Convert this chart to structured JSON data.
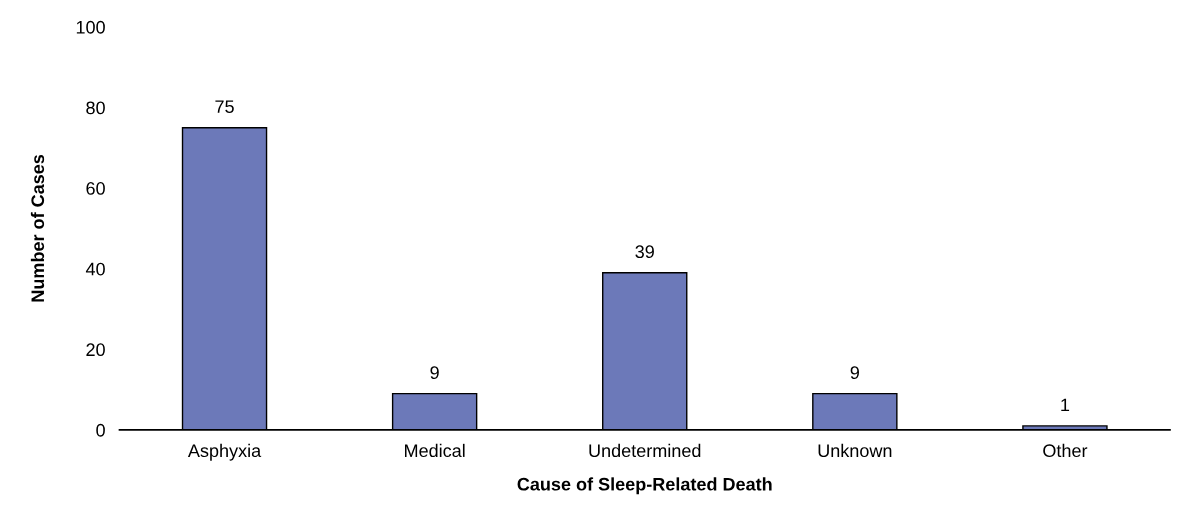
{
  "chart_data": {
    "type": "bar",
    "xlabel": "Cause of Sleep-Related Death",
    "ylabel": "Number of Cases",
    "categories": [
      "Asphyxia",
      "Medical",
      "Undetermined",
      "Unknown",
      "Other"
    ],
    "values": [
      75,
      9,
      39,
      9,
      1
    ],
    "color": "#6c79b9",
    "ylim": [
      0,
      100
    ],
    "yticks": [
      0,
      20,
      40,
      60,
      80,
      100
    ],
    "grid": false,
    "data_labels": true
  }
}
